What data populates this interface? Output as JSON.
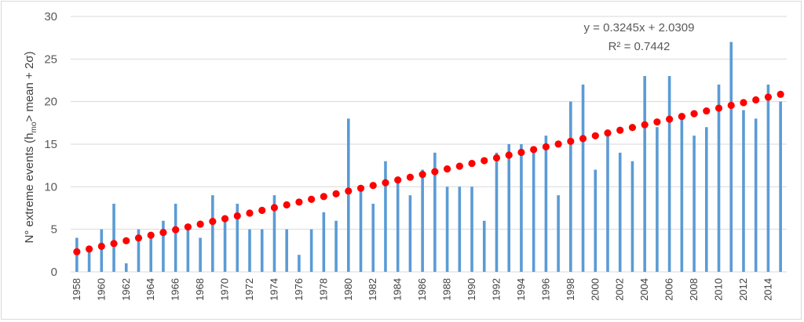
{
  "chart_data": {
    "type": "bar",
    "title": "",
    "ylabel": "N° extreme events (h_mo > mean + 2σ)",
    "ylabel_parts": {
      "pre": "N° extreme events (h",
      "sub": "mo",
      "post": "> mean + 2σ)"
    },
    "xlabel": "",
    "ylim": [
      0,
      30
    ],
    "yticks": [
      0,
      5,
      10,
      15,
      20,
      25,
      30
    ],
    "grid": true,
    "bar_color": "#5b9bd5",
    "trend_color": "#ff0000",
    "grid_color": "#d9d9d9",
    "categories": [
      1958,
      1959,
      1960,
      1961,
      1962,
      1963,
      1964,
      1965,
      1966,
      1967,
      1968,
      1969,
      1970,
      1971,
      1972,
      1973,
      1974,
      1975,
      1976,
      1977,
      1978,
      1979,
      1980,
      1981,
      1982,
      1983,
      1984,
      1985,
      1986,
      1987,
      1988,
      1989,
      1990,
      1991,
      1992,
      1993,
      1994,
      1995,
      1996,
      1997,
      1998,
      1999,
      2000,
      2001,
      2002,
      2003,
      2004,
      2005,
      2006,
      2007,
      2008,
      2009,
      2010,
      2011,
      2012,
      2013,
      2014,
      2015
    ],
    "xtick_labels": [
      "1958",
      "1960",
      "1962",
      "1964",
      "1966",
      "1968",
      "1970",
      "1972",
      "1974",
      "1976",
      "1978",
      "1980",
      "1982",
      "1984",
      "1986",
      "1988",
      "1990",
      "1992",
      "1994",
      "1996",
      "1998",
      "2000",
      "2002",
      "2004",
      "2006",
      "2008",
      "2010",
      "2012",
      "2014"
    ],
    "series": [
      {
        "values": [
          4,
          3,
          5,
          8,
          1,
          5,
          4,
          6,
          8,
          5,
          4,
          9,
          6,
          8,
          5,
          5,
          9,
          5,
          2,
          5,
          7,
          6,
          18,
          10,
          8,
          13,
          11,
          9,
          12,
          14,
          10,
          10,
          10,
          6,
          14,
          15,
          15,
          14,
          16,
          9,
          20,
          22,
          12,
          16,
          14,
          13,
          23,
          17,
          23,
          18,
          16,
          17,
          22,
          27,
          19,
          18,
          22,
          20
        ]
      }
    ],
    "trendline": {
      "equation": "y = 0.3245x + 2.0309",
      "r_squared": "R² = 0.7442",
      "slope": 0.3245,
      "intercept": 2.0309
    }
  }
}
